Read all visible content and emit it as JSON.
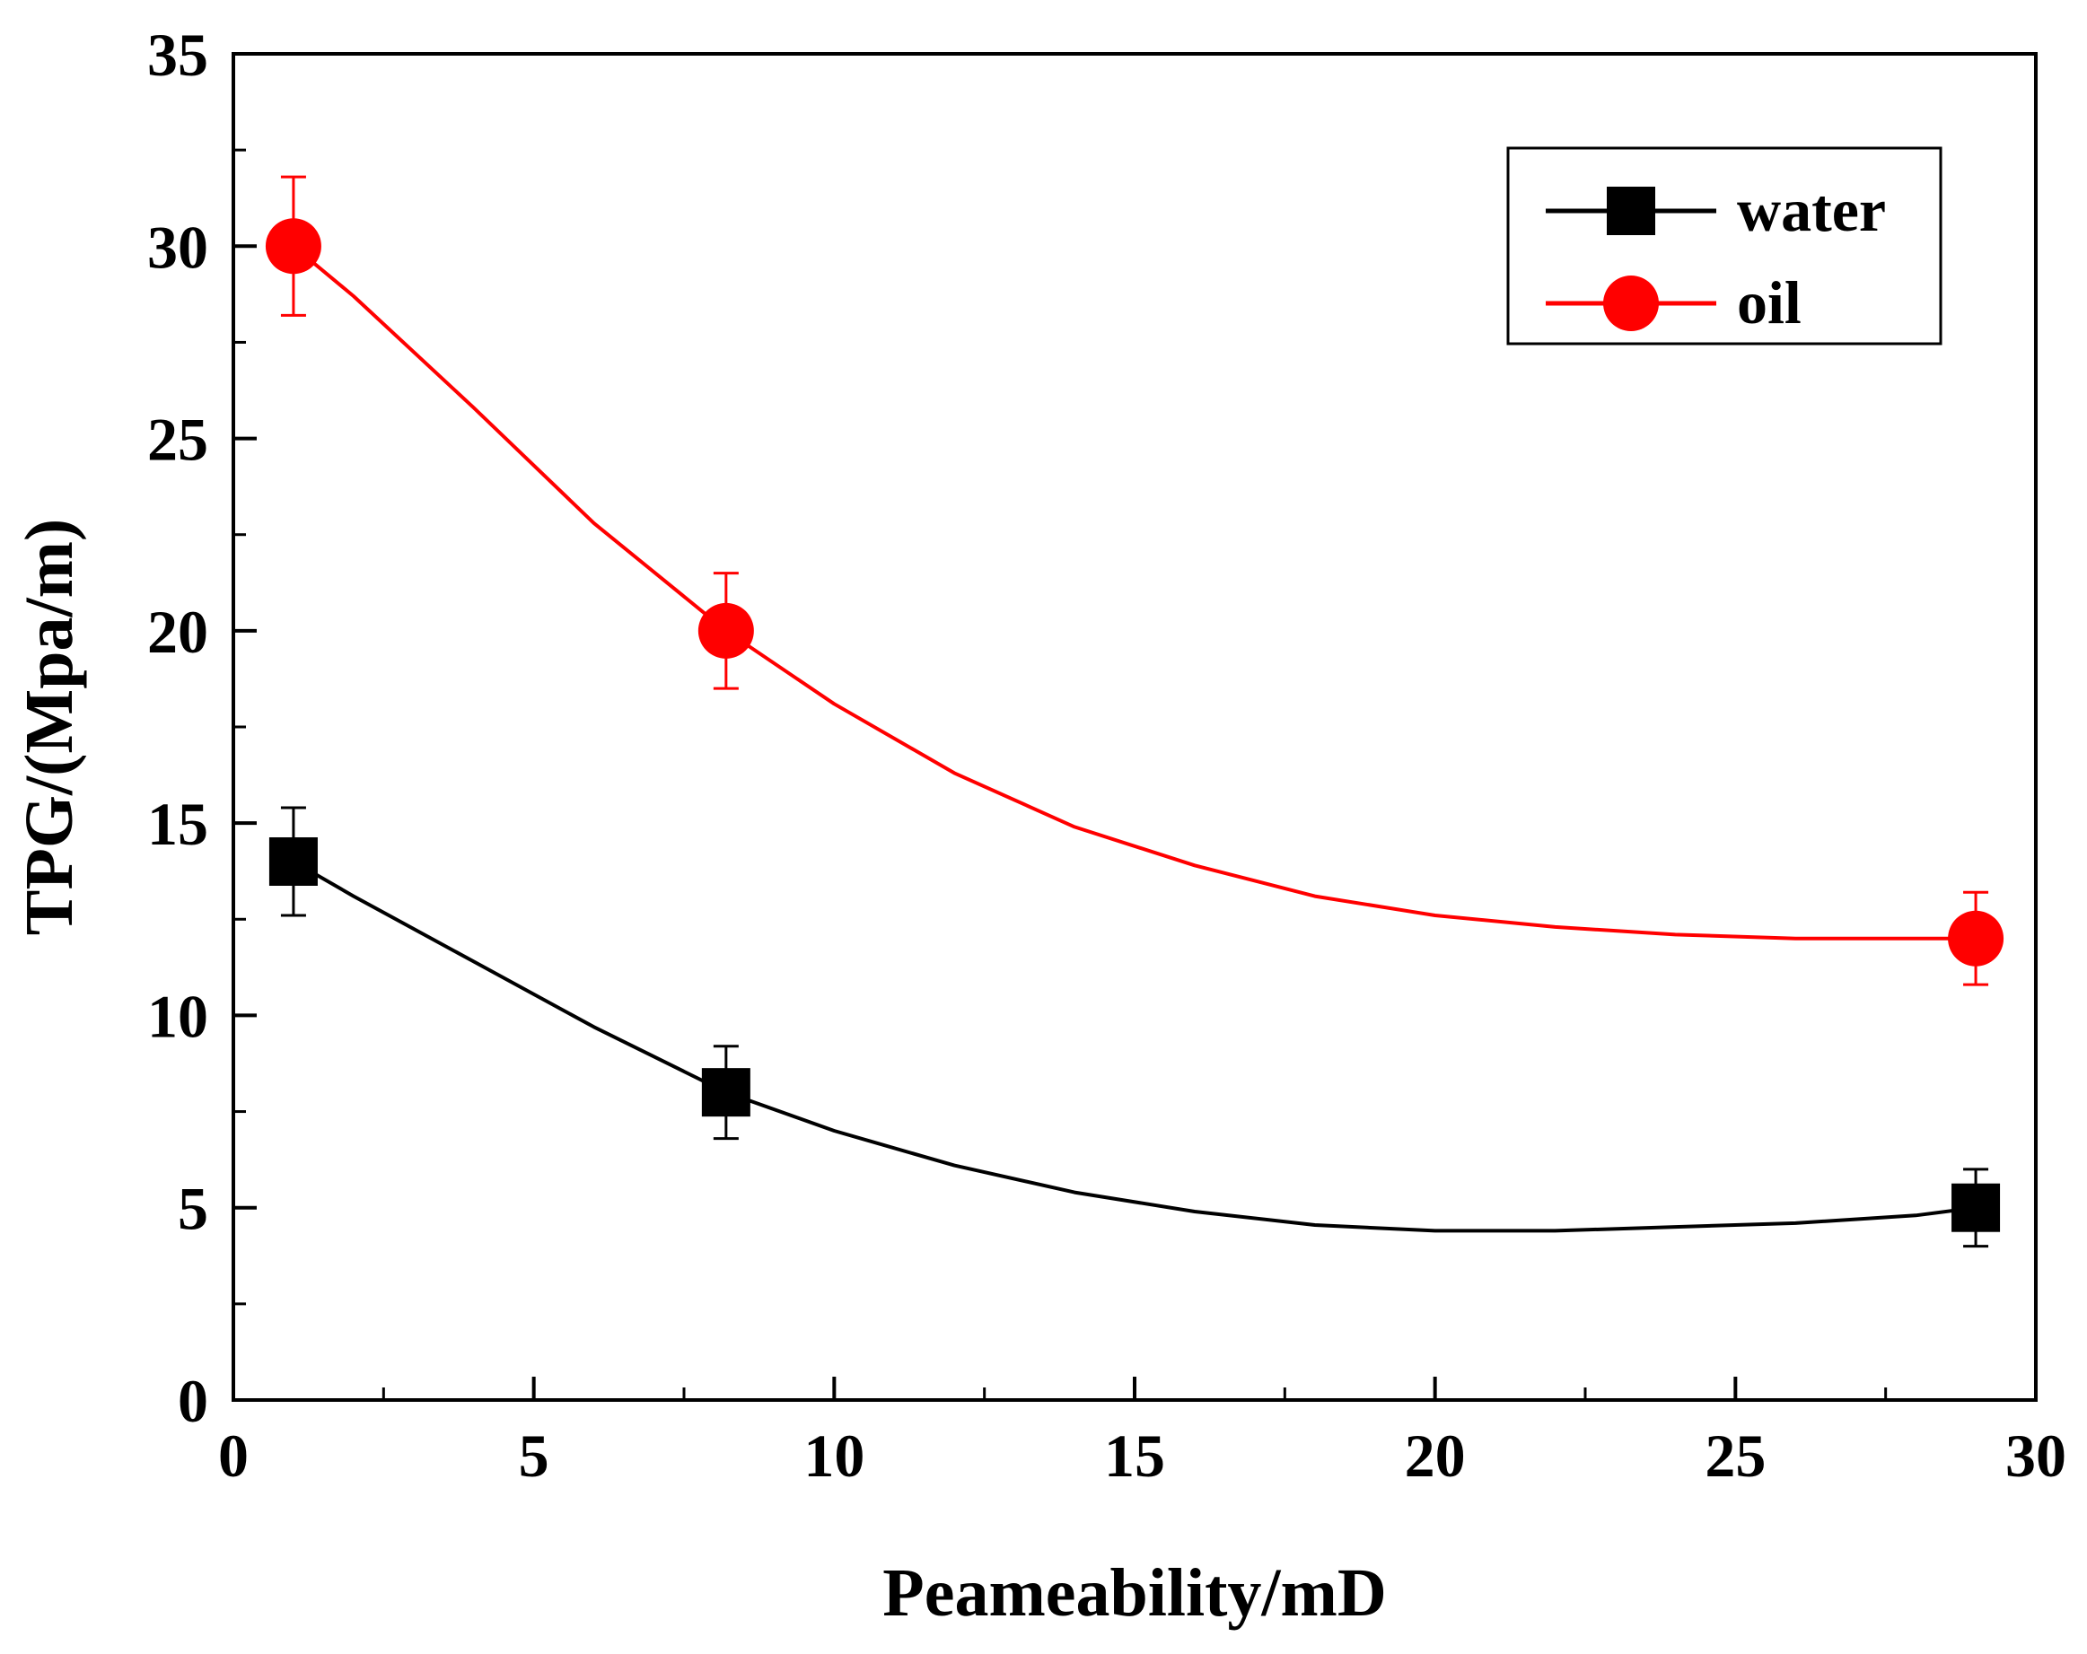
{
  "chart_data": {
    "type": "line",
    "title": "",
    "xlabel": "Peameability/mD",
    "ylabel": "TPG/(Mpa/m)",
    "xlim": [
      0,
      30
    ],
    "ylim": [
      0,
      35
    ],
    "xticks": [
      0,
      5,
      10,
      15,
      20,
      25,
      30
    ],
    "yticks": [
      0,
      5,
      10,
      15,
      20,
      25,
      30,
      35
    ],
    "xtick_labels": [
      "0",
      "5",
      "10",
      "15",
      "20",
      "25",
      "30"
    ],
    "ytick_labels": [
      "0",
      "5",
      "10",
      "15",
      "20",
      "25",
      "30",
      "35"
    ],
    "x_minor_step": 2.5,
    "y_minor_step": 2.5,
    "grid": false,
    "legend_position": "top-right",
    "series": [
      {
        "name": "water",
        "color": "#000000",
        "marker": "square",
        "x": [
          1,
          8.2,
          29
        ],
        "y": [
          14,
          8,
          5
        ],
        "yerr": [
          1.4,
          1.2,
          1.0
        ],
        "curve": {
          "x": [
            1,
            2,
            4,
            6,
            8.2,
            10,
            12,
            14,
            16,
            18,
            20,
            22,
            24,
            26,
            28,
            29
          ],
          "y": [
            14,
            13.1,
            11.4,
            9.7,
            8.0,
            7.0,
            6.1,
            5.4,
            4.9,
            4.55,
            4.4,
            4.4,
            4.5,
            4.6,
            4.8,
            5.0
          ]
        }
      },
      {
        "name": "oil",
        "color": "#ff0000",
        "marker": "circle",
        "x": [
          1,
          8.2,
          29
        ],
        "y": [
          30,
          20,
          12
        ],
        "yerr": [
          1.8,
          1.5,
          1.2
        ],
        "curve": {
          "x": [
            1,
            2,
            4,
            6,
            8.2,
            10,
            12,
            14,
            16,
            18,
            20,
            22,
            24,
            26,
            28,
            29
          ],
          "y": [
            30,
            28.7,
            25.8,
            22.8,
            20.0,
            18.1,
            16.3,
            14.9,
            13.9,
            13.1,
            12.6,
            12.3,
            12.1,
            12.0,
            12.0,
            12.0
          ]
        }
      }
    ]
  }
}
